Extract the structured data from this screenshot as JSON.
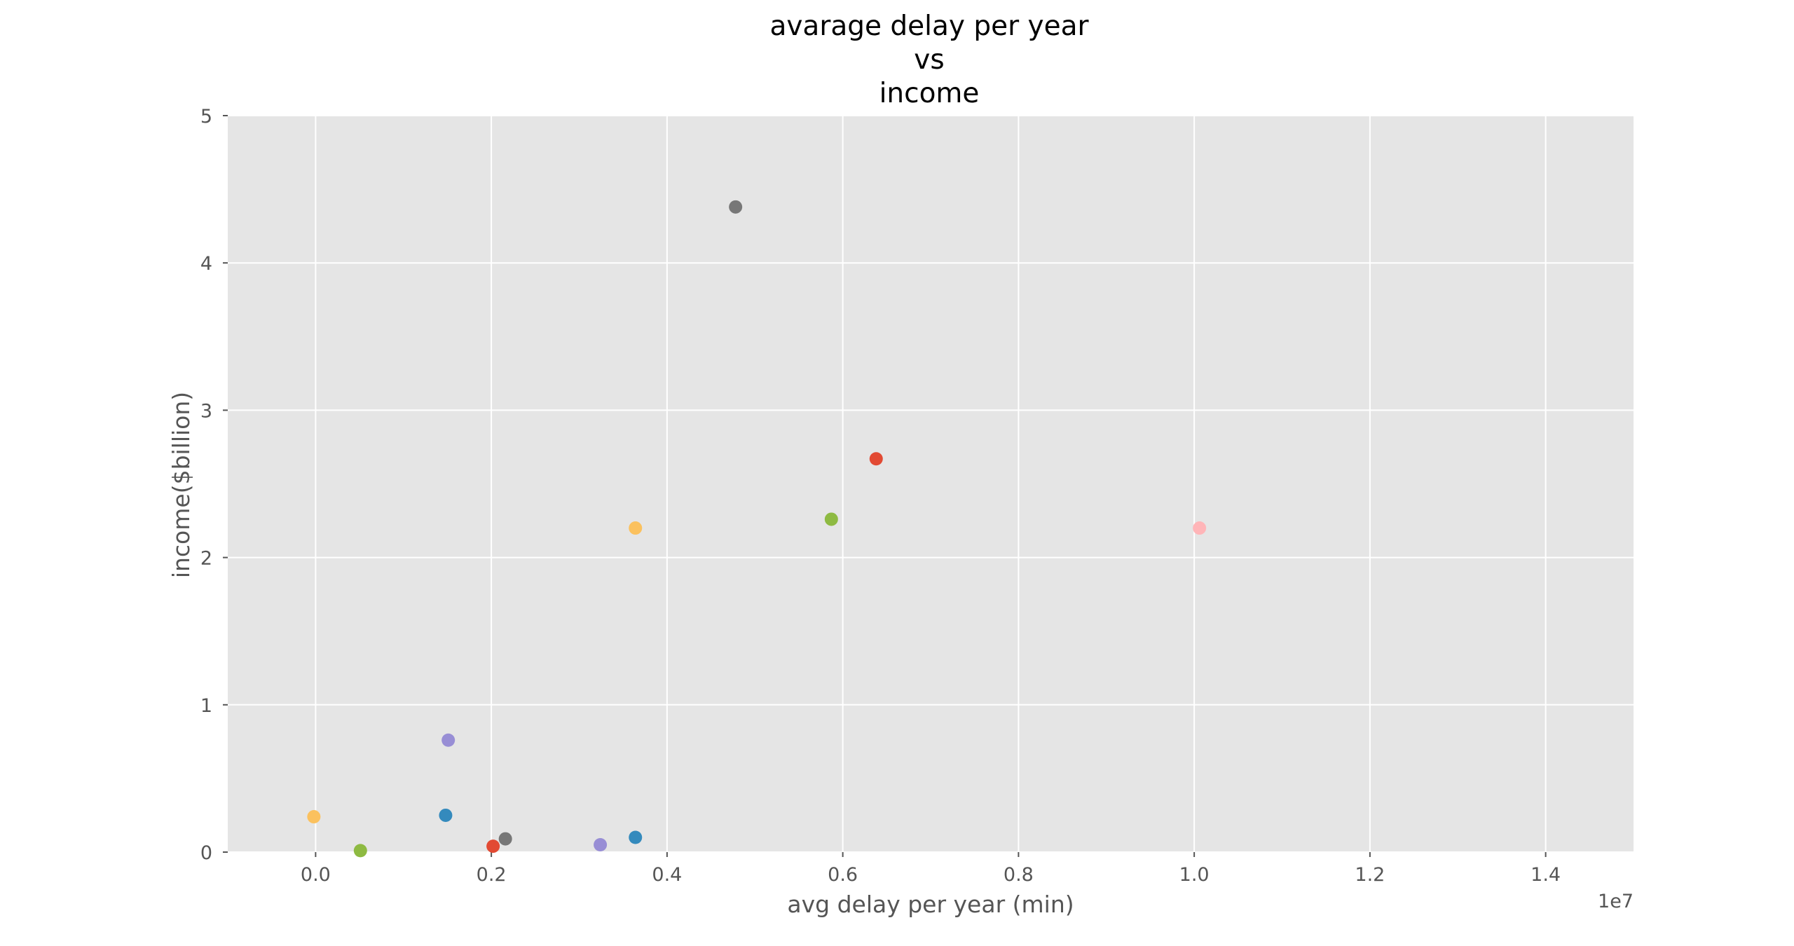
{
  "chart_data": {
    "type": "scatter",
    "title_lines": [
      "avarage delay per year",
      "vs",
      "income"
    ],
    "xlabel": "avg delay per year (min)",
    "ylabel": "income($billion)",
    "x_offset_label": "1e7",
    "xlim": [
      -0.1,
      1.5
    ],
    "ylim": [
      0,
      5
    ],
    "x_ticks": [
      0.0,
      0.2,
      0.4,
      0.6,
      0.8,
      1.0,
      1.2,
      1.4
    ],
    "x_tick_labels": [
      "0.0",
      "0.2",
      "0.4",
      "0.6",
      "0.8",
      "1.0",
      "1.2",
      "1.4"
    ],
    "y_ticks": [
      0,
      1,
      2,
      3,
      4,
      5
    ],
    "y_tick_labels": [
      "0",
      "1",
      "2",
      "3",
      "4",
      "5"
    ],
    "grid": true,
    "style": "ggplot",
    "colors": {
      "plot_background": "#e5e5e5",
      "grid": "#ffffff",
      "text": "#555555",
      "title": "#000000"
    },
    "points": [
      {
        "x": -0.002,
        "y": 0.24,
        "color": "#FBC15E"
      },
      {
        "x": 0.051,
        "y": 0.01,
        "color": "#8EBA42"
      },
      {
        "x": 0.148,
        "y": 0.25,
        "color": "#348ABD"
      },
      {
        "x": 0.151,
        "y": 0.76,
        "color": "#988ED5"
      },
      {
        "x": 0.202,
        "y": 0.04,
        "color": "#E24A33"
      },
      {
        "x": 0.216,
        "y": 0.09,
        "color": "#777777"
      },
      {
        "x": 0.324,
        "y": 0.05,
        "color": "#988ED5"
      },
      {
        "x": 0.364,
        "y": 0.1,
        "color": "#348ABD"
      },
      {
        "x": 0.364,
        "y": 2.2,
        "color": "#FBC15E"
      },
      {
        "x": 0.478,
        "y": 4.38,
        "color": "#777777"
      },
      {
        "x": 0.587,
        "y": 2.26,
        "color": "#8EBA42"
      },
      {
        "x": 0.638,
        "y": 2.67,
        "color": "#E24A33"
      },
      {
        "x": 1.006,
        "y": 2.2,
        "color": "#FFB5B8"
      }
    ]
  }
}
